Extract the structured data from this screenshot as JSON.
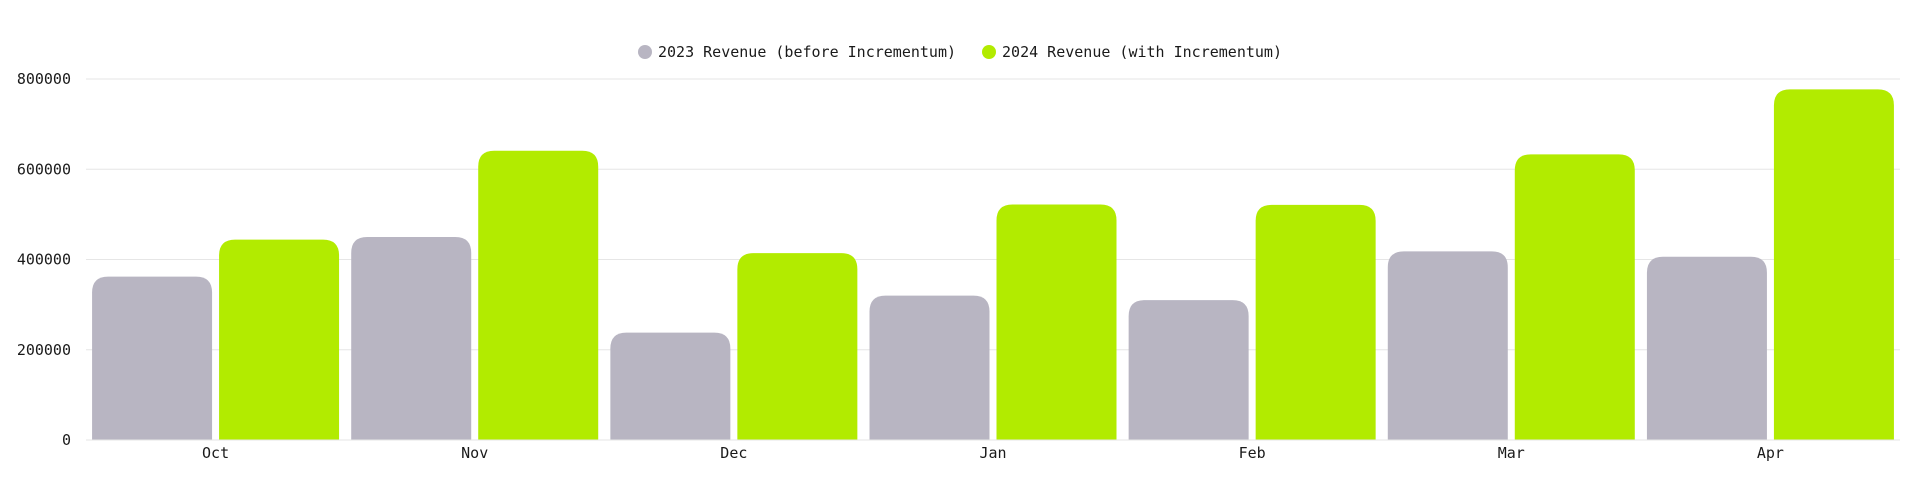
{
  "chart_data": {
    "type": "bar",
    "categories": [
      "Oct",
      "Nov",
      "Dec",
      "Jan",
      "Feb",
      "Mar",
      "Apr"
    ],
    "series": [
      {
        "name": "2023 Revenue (before Incrementum)",
        "color": "#b8b5c2",
        "values": [
          362000,
          450000,
          238000,
          320000,
          310000,
          418000,
          406000
        ]
      },
      {
        "name": "2024 Revenue (with Incrementum)",
        "color": "#b2eb00",
        "values": [
          444000,
          641000,
          414000,
          522000,
          521000,
          633000,
          777000
        ]
      }
    ],
    "yticks": [
      "0",
      "200000",
      "400000",
      "600000",
      "800000"
    ],
    "ylim": [
      0,
      800000
    ],
    "grid": true,
    "legend_position": "top-center"
  }
}
